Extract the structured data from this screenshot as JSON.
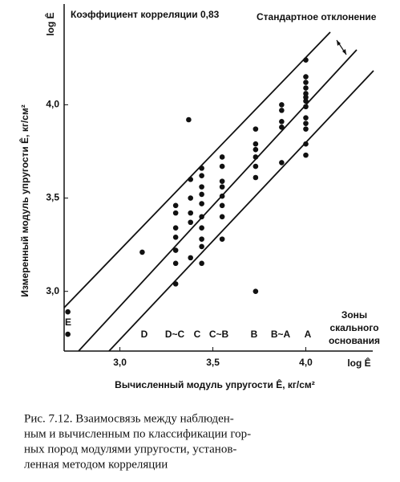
{
  "chart_data": {
    "type": "scatter",
    "title": "Коэффициент корреляции 0,83",
    "annotation": "Стандартное отклонение",
    "y_label": "Измеренный модуль упругости  Ê, кг/см²",
    "y_axis_name": "log Ê",
    "x_label": "Вычисленный модуль упругости  Ê, кг/см²",
    "x_axis_name": "log Ê",
    "zones_title": [
      "Зоны",
      "скального",
      "основания"
    ],
    "zones": [
      "E",
      "D",
      "D~C",
      "C",
      "C~B",
      "B",
      "B~A",
      "A"
    ],
    "color": "#111111",
    "xlim": [
      2.7,
      4.36
    ],
    "ylim": [
      2.68,
      4.54
    ],
    "xticks": [
      {
        "value": 3.0,
        "label": "3,0"
      },
      {
        "value": 3.5,
        "label": "3,5"
      },
      {
        "value": 4.0,
        "label": "4,0"
      }
    ],
    "yticks": [
      {
        "value": 3.0,
        "label": "3,0"
      },
      {
        "value": 3.5,
        "label": "3,5"
      },
      {
        "value": 4.0,
        "label": "4,0"
      }
    ],
    "x": [
      2.72,
      2.72,
      3.12,
      3.3,
      3.3,
      3.3,
      3.3,
      3.3,
      3.3,
      3.3,
      3.37,
      3.38,
      3.38,
      3.38,
      3.38,
      3.38,
      3.44,
      3.44,
      3.44,
      3.44,
      3.44,
      3.44,
      3.44,
      3.44,
      3.44,
      3.44,
      3.55,
      3.55,
      3.55,
      3.55,
      3.55,
      3.55,
      3.55,
      3.55,
      3.73,
      3.73,
      3.73,
      3.73,
      3.73,
      3.73,
      3.73,
      3.87,
      3.87,
      3.87,
      3.87,
      3.87,
      4.0,
      4.0,
      4.0,
      4.0,
      4.0,
      4.0,
      4.0,
      4.0,
      4.0,
      4.0,
      4.0,
      4.0,
      4.0
    ],
    "values": [
      2.89,
      2.77,
      3.21,
      3.46,
      3.42,
      3.34,
      3.29,
      3.22,
      3.15,
      3.04,
      3.92,
      3.6,
      3.5,
      3.42,
      3.37,
      3.18,
      3.66,
      3.62,
      3.56,
      3.52,
      3.47,
      3.4,
      3.34,
      3.28,
      3.24,
      3.15,
      3.72,
      3.67,
      3.59,
      3.56,
      3.51,
      3.46,
      3.4,
      3.28,
      3.87,
      3.79,
      3.76,
      3.72,
      3.67,
      3.61,
      3.0,
      4.0,
      3.97,
      3.91,
      3.88,
      3.69,
      4.24,
      4.15,
      4.12,
      4.09,
      4.06,
      4.04,
      4.02,
      3.99,
      3.93,
      3.9,
      3.87,
      3.79,
      3.73
    ],
    "caption": [
      "Рис. 7.12. Взаимосвязь между наблюден-",
      "ным и вычисленным по классификации гор-",
      "ных пород модулями упругости, установ-",
      "ленная методом корреляции"
    ]
  }
}
